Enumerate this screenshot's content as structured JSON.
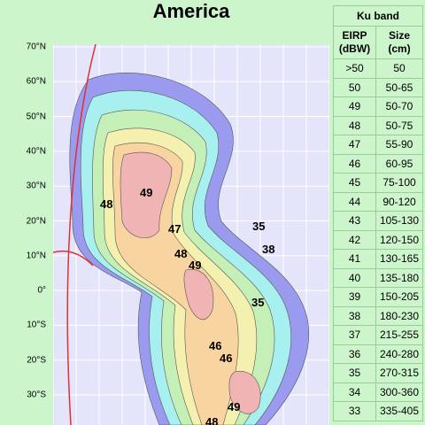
{
  "title": "America",
  "latitude_labels": [
    "70°N",
    "60°N",
    "50°N",
    "40°N",
    "30°N",
    "20°N",
    "10°N",
    "0°",
    "10°S",
    "20°S",
    "30°S"
  ],
  "contour_labels": [
    "48",
    "49",
    "47",
    "48",
    "49",
    "35",
    "38",
    "35",
    "46",
    "46",
    "49",
    "48"
  ],
  "table": {
    "title": "Ku band",
    "headers": [
      [
        "EIRP",
        "(dBW)"
      ],
      [
        "Size",
        "(cm)"
      ]
    ],
    "rows": [
      [
        ">50",
        "50"
      ],
      [
        "50",
        "50-65"
      ],
      [
        "49",
        "50-70"
      ],
      [
        "48",
        "50-75"
      ],
      [
        "47",
        "55-90"
      ],
      [
        "46",
        "60-95"
      ],
      [
        "45",
        "75-100"
      ],
      [
        "44",
        "90-120"
      ],
      [
        "43",
        "105-130"
      ],
      [
        "42",
        "120-150"
      ],
      [
        "41",
        "130-165"
      ],
      [
        "40",
        "135-180"
      ],
      [
        "39",
        "150-205"
      ],
      [
        "38",
        "180-230"
      ],
      [
        "37",
        "215-255"
      ],
      [
        "36",
        "240-280"
      ],
      [
        "35",
        "270-315"
      ],
      [
        "34",
        "300-360"
      ],
      [
        "33",
        "335-405"
      ]
    ]
  }
}
